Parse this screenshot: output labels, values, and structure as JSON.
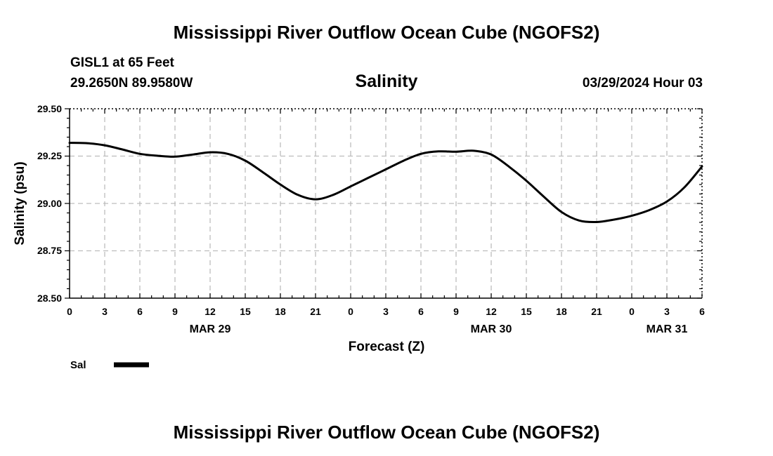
{
  "header": {
    "title": "Mississippi River Outflow Ocean Cube (NGOFS2)",
    "station": "GISL1 at 65 Feet",
    "coords": "29.2650N  89.9580W",
    "datetime": "03/29/2024 Hour 03",
    "footer_title": "Mississippi River Outflow Ocean Cube (NGOFS2)"
  },
  "chart_data": {
    "type": "line",
    "title": "Salinity",
    "xlabel": "Forecast (Z)",
    "ylabel": "Salinity (psu)",
    "ylim": [
      28.5,
      29.5
    ],
    "xlim": [
      0,
      54
    ],
    "grid": true,
    "y_ticks": [
      "29.50",
      "29.25",
      "29.00",
      "28.75",
      "28.50"
    ],
    "x_tick_labels": [
      "0",
      "3",
      "6",
      "9",
      "12",
      "15",
      "18",
      "21",
      "0",
      "3",
      "6",
      "9",
      "12",
      "15",
      "18",
      "21",
      "0",
      "3",
      "6"
    ],
    "date_labels": [
      {
        "label": "MAR 29",
        "hour_offset": 12
      },
      {
        "label": "MAR 30",
        "hour_offset": 36
      },
      {
        "label": "MAR 31",
        "hour_offset": 51
      }
    ],
    "legend_position": "bottom-left",
    "series": [
      {
        "name": "Sal",
        "color": "#000000",
        "x": [
          0,
          1.5,
          3,
          4.5,
          6,
          7.5,
          9,
          10.5,
          12,
          13.5,
          15,
          16.5,
          18,
          19.5,
          21,
          22.5,
          24,
          25.5,
          27,
          28.5,
          30,
          31.5,
          33,
          34.5,
          36,
          37.5,
          39,
          40.5,
          42,
          43.5,
          45,
          46.5,
          48,
          49.5,
          51,
          52.5,
          54
        ],
        "values": [
          29.32,
          29.318,
          29.307,
          29.285,
          29.262,
          29.252,
          29.247,
          29.258,
          29.27,
          29.262,
          29.226,
          29.165,
          29.1,
          29.045,
          29.022,
          29.045,
          29.09,
          29.135,
          29.18,
          29.225,
          29.262,
          29.275,
          29.273,
          29.278,
          29.258,
          29.195,
          29.12,
          29.035,
          28.955,
          28.91,
          28.902,
          28.915,
          28.935,
          28.965,
          29.01,
          29.085,
          29.195
        ]
      }
    ]
  }
}
